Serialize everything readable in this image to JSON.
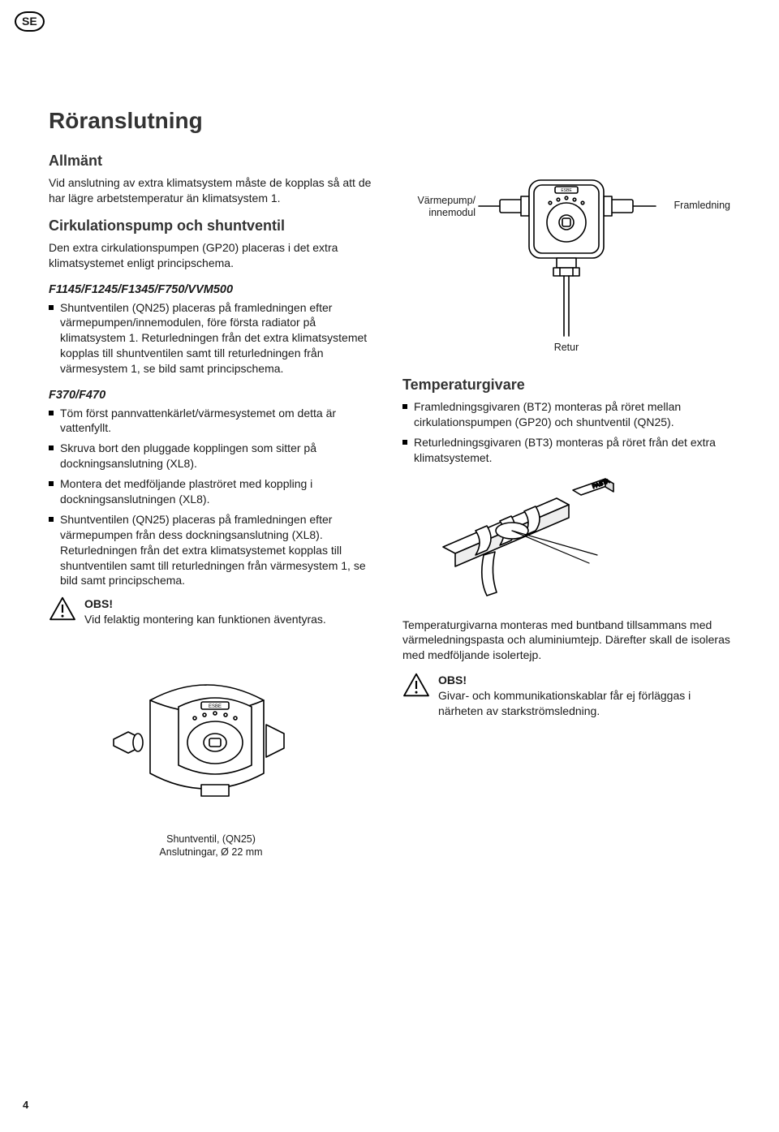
{
  "country_code": "SE",
  "page_number": "4",
  "h1": "Röranslutning",
  "left": {
    "allmant": {
      "heading": "Allmänt",
      "body": "Vid anslutning av extra klimatsystem måste de kopplas så att de har lägre arbetstemperatur än klimatsystem 1."
    },
    "cirk": {
      "heading": "Cirkulationspump och shuntventil",
      "body": "Den extra cirkulationspumpen (GP20) placeras i det extra klimatsystemet enligt principschema."
    },
    "model_a": {
      "heading": "F1145/F1245/F1345/F750/VVM500",
      "item": "Shuntventilen (QN25) placeras på framledningen efter värmepumpen/innemodulen, före första radiator på klimatsystem 1. Returledningen från det extra klimatsystemet kopplas till shuntventilen samt till returledningen från värmesystem 1, se bild samt principschema."
    },
    "model_b": {
      "heading": "F370/F470",
      "items": [
        "Töm först pannvattenkärlet/värmesystemet om detta är vattenfyllt.",
        "Skruva bort den pluggade kopplingen som sitter på dockningsanslutning (XL8).",
        "Montera det medföljande plaströret med koppling i dockningsanslutningen (XL8).",
        "Shuntventilen (QN25) placeras på framledningen efter värmepumpen från dess dockningsanslutning (XL8). Returledningen från det extra klimatsystemet kopplas till shuntventilen samt till returledningen från värmesystem 1, se bild samt principschema."
      ]
    },
    "note": {
      "title": "OBS!",
      "body": "Vid felaktig montering kan funktionen äventyras."
    },
    "fig_caption_1": "Shuntventil, (QN25)",
    "fig_caption_2": "Anslutningar, Ø 22 mm"
  },
  "right": {
    "diag_labels": {
      "left": "Värmepump/\ninnemodul",
      "right": "Framledning",
      "bottom": "Retur"
    },
    "temp": {
      "heading": "Temperaturgivare",
      "items": [
        "Framledningsgivaren (BT2) monteras på röret mellan cirkulationspumpen (GP20) och shuntventil (QN25).",
        "Returledningsgivaren (BT3) monteras på röret från det extra klimatsystemet."
      ],
      "para": "Temperaturgivarna monteras med buntband tillsammans med värmeledningspasta och aluminiumtejp. Därefter skall de isoleras med medföljande isolertejp."
    },
    "note": {
      "title": "OBS!",
      "body": "Givar- och kommunikationskablar får ej förläggas i närheten av starkströmsledning."
    }
  },
  "colors": {
    "text": "#1a1a1a",
    "heading": "#333333",
    "bg": "#ffffff",
    "stroke": "#000000"
  }
}
